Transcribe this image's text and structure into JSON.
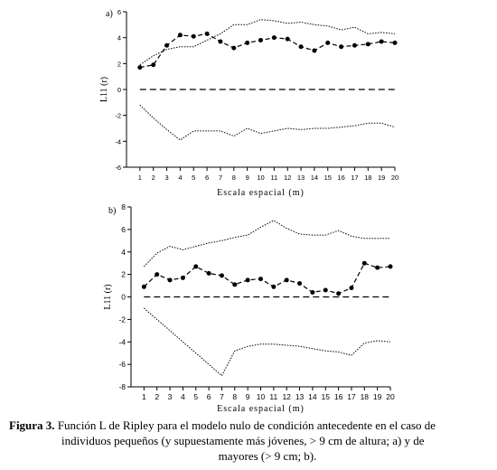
{
  "panels": [
    {
      "letter": "a)",
      "ylabel": "L11 (r)",
      "xlabel": "Escala espacial (m)",
      "ylim": [
        -6,
        6
      ],
      "yticks": [
        6,
        4,
        2,
        0,
        -2,
        -4,
        -6
      ],
      "xticks": [
        1,
        2,
        3,
        4,
        5,
        6,
        7,
        8,
        9,
        10,
        11,
        12,
        13,
        14,
        15,
        16,
        17,
        18,
        19,
        20
      ]
    },
    {
      "letter": "b)",
      "ylabel": "L11 (r)",
      "xlabel": "Escala espacial (m)",
      "ylim": [
        -8,
        8
      ],
      "yticks": [
        8,
        6,
        4,
        2,
        0,
        -2,
        -4,
        -6,
        -8
      ],
      "xticks": [
        1,
        2,
        3,
        4,
        5,
        6,
        7,
        8,
        9,
        10,
        11,
        12,
        13,
        14,
        15,
        16,
        17,
        18,
        19,
        20
      ]
    }
  ],
  "caption": {
    "lead": "Figura 3.",
    "line1": " Función L de Ripley para el modelo nulo de condición antecedente en el caso de",
    "line2": "individuos pequeños (y supuestamente más jóvenes, > 9 cm de altura; a) y de",
    "line3": "mayores (> 9 cm; b)."
  },
  "chart_data": [
    {
      "type": "line",
      "panel": "a)",
      "x": [
        1,
        2,
        3,
        4,
        5,
        6,
        7,
        8,
        9,
        10,
        11,
        12,
        13,
        14,
        15,
        16,
        17,
        18,
        19,
        20
      ],
      "series": [
        {
          "style": "observed",
          "values": [
            1.7,
            1.9,
            3.4,
            4.2,
            4.1,
            4.3,
            3.7,
            3.2,
            3.6,
            3.8,
            4.0,
            3.9,
            3.3,
            3.0,
            3.6,
            3.3,
            3.4,
            3.5,
            3.7,
            3.6
          ]
        },
        {
          "style": "upper-envelope",
          "values": [
            1.9,
            2.6,
            3.1,
            3.3,
            3.3,
            3.8,
            4.3,
            5.0,
            5.0,
            5.4,
            5.3,
            5.1,
            5.2,
            5.0,
            4.9,
            4.6,
            4.8,
            4.3,
            4.4,
            4.3
          ]
        },
        {
          "style": "lower-envelope",
          "values": [
            -1.2,
            -2.2,
            -3.1,
            -3.9,
            -3.2,
            -3.2,
            -3.2,
            -3.6,
            -3.0,
            -3.4,
            -3.2,
            -3.0,
            -3.1,
            -3.0,
            -3.0,
            -2.9,
            -2.8,
            -2.6,
            -2.6,
            -2.9
          ]
        },
        {
          "style": "null-model",
          "values": [
            0,
            0,
            0,
            0,
            0,
            0,
            0,
            0,
            0,
            0,
            0,
            0,
            0,
            0,
            0,
            0,
            0,
            0,
            0,
            0
          ]
        }
      ],
      "xlabel": "Escala espacial (m)",
      "ylabel": "L11 (r)",
      "ylim": [
        -6,
        6
      ],
      "xlim": [
        0,
        20
      ]
    },
    {
      "type": "line",
      "panel": "b)",
      "x": [
        1,
        2,
        3,
        4,
        5,
        6,
        7,
        8,
        9,
        10,
        11,
        12,
        13,
        14,
        15,
        16,
        17,
        18,
        19,
        20
      ],
      "series": [
        {
          "style": "observed",
          "values": [
            0.9,
            2.0,
            1.5,
            1.7,
            2.7,
            2.1,
            1.9,
            1.1,
            1.5,
            1.6,
            0.9,
            1.5,
            1.2,
            0.4,
            0.6,
            0.3,
            0.8,
            3.0,
            2.6,
            2.7
          ]
        },
        {
          "style": "upper-envelope",
          "values": [
            2.7,
            3.9,
            4.5,
            4.2,
            4.5,
            4.8,
            5.0,
            5.3,
            5.5,
            6.2,
            6.8,
            6.1,
            5.6,
            5.5,
            5.5,
            5.9,
            5.4,
            5.2,
            5.2,
            5.2
          ]
        },
        {
          "style": "lower-envelope",
          "values": [
            -1.0,
            -2.0,
            -3.0,
            -4.0,
            -5.0,
            -6.0,
            -7.0,
            -4.8,
            -4.4,
            -4.2,
            -4.2,
            -4.3,
            -4.4,
            -4.6,
            -4.8,
            -4.9,
            -5.2,
            -4.1,
            -3.9,
            -4.0
          ]
        },
        {
          "style": "null-model",
          "values": [
            0,
            0,
            0,
            0,
            0,
            0,
            0,
            0,
            0,
            0,
            0,
            0,
            0,
            0,
            0,
            0,
            0,
            0,
            0,
            0
          ]
        }
      ],
      "xlabel": "Escala espacial (m)",
      "ylabel": "L11 (r)",
      "ylim": [
        -8,
        8
      ],
      "xlim": [
        0,
        20
      ]
    }
  ]
}
